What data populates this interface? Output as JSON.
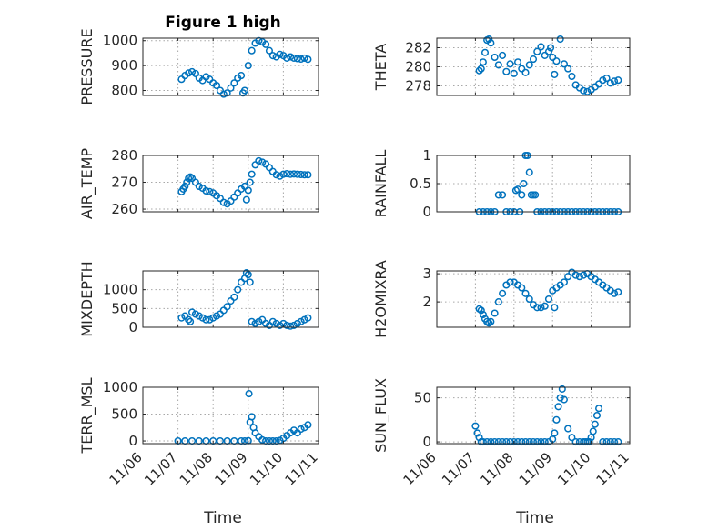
{
  "figure_title": "Figure 1 high",
  "x_axis": {
    "label": "Time",
    "tick_labels": [
      "11/06",
      "11/07",
      "11/08",
      "11/09",
      "11/10",
      "11/11"
    ],
    "range": [
      0,
      5
    ]
  },
  "colors": {
    "marker": "#0072bd",
    "axes": "#262626",
    "grid": "#a8a8a8"
  },
  "chart_data": [
    {
      "type": "scatter",
      "id": "pressure",
      "ylabel": "PRESSURE",
      "ylim": [
        780,
        1010
      ],
      "yticks": [
        800,
        900,
        1000
      ],
      "grid": true,
      "x": [
        1.1,
        1.2,
        1.3,
        1.4,
        1.5,
        1.6,
        1.7,
        1.8,
        1.9,
        2.0,
        2.1,
        2.2,
        2.3,
        2.4,
        2.5,
        2.6,
        2.7,
        2.8,
        2.85,
        2.9,
        3.0,
        3.1,
        3.2,
        3.3,
        3.4,
        3.5,
        3.6,
        3.7,
        3.8,
        3.9,
        4.0,
        4.1,
        4.2,
        4.3,
        4.4,
        4.5,
        4.6,
        4.7
      ],
      "y": [
        845,
        860,
        870,
        875,
        868,
        850,
        840,
        855,
        845,
        830,
        820,
        800,
        785,
        790,
        810,
        830,
        850,
        860,
        790,
        800,
        900,
        960,
        990,
        1000,
        995,
        985,
        960,
        940,
        935,
        945,
        940,
        930,
        935,
        930,
        928,
        926,
        930,
        925
      ]
    },
    {
      "type": "scatter",
      "id": "theta",
      "ylabel": "THETA",
      "ylim": [
        277,
        283
      ],
      "yticks": [
        278,
        280,
        282
      ],
      "grid": true,
      "x": [
        1.1,
        1.15,
        1.2,
        1.25,
        1.3,
        1.35,
        1.4,
        1.5,
        1.6,
        1.7,
        1.8,
        1.9,
        2.0,
        2.1,
        2.2,
        2.3,
        2.4,
        2.5,
        2.6,
        2.7,
        2.8,
        2.9,
        2.95,
        3.0,
        3.05,
        3.1,
        3.2,
        3.3,
        3.4,
        3.5,
        3.6,
        3.7,
        3.8,
        3.9,
        4.0,
        4.1,
        4.2,
        4.3,
        4.4,
        4.5,
        4.6,
        4.7
      ],
      "y": [
        279.6,
        279.8,
        280.5,
        281.5,
        282.8,
        282.9,
        282.5,
        281,
        280.2,
        281.2,
        279.5,
        280.3,
        279.3,
        280.5,
        279.8,
        279.4,
        280.2,
        280.8,
        281.6,
        282.1,
        281.2,
        281.6,
        282,
        281,
        279.2,
        280.6,
        282.9,
        280.3,
        279.8,
        279,
        278.1,
        277.8,
        277.5,
        277.4,
        277.6,
        277.9,
        278.2,
        278.6,
        278.8,
        278.3,
        278.5,
        278.6
      ]
    },
    {
      "type": "scatter",
      "id": "air_temp",
      "ylabel": "AIR_TEMP",
      "ylim": [
        259,
        280
      ],
      "yticks": [
        260,
        270,
        280
      ],
      "grid": true,
      "x": [
        1.1,
        1.15,
        1.2,
        1.25,
        1.3,
        1.35,
        1.4,
        1.5,
        1.6,
        1.7,
        1.8,
        1.9,
        2.0,
        2.1,
        2.2,
        2.3,
        2.4,
        2.5,
        2.6,
        2.7,
        2.8,
        2.9,
        2.95,
        3.0,
        3.05,
        3.1,
        3.2,
        3.3,
        3.4,
        3.5,
        3.6,
        3.7,
        3.8,
        3.9,
        4.0,
        4.1,
        4.2,
        4.3,
        4.4,
        4.5,
        4.6,
        4.7
      ],
      "y": [
        266.5,
        267.5,
        268.5,
        270,
        271.5,
        272,
        271.5,
        270,
        268.5,
        267.8,
        266.8,
        266.5,
        266,
        265,
        264,
        262.5,
        262,
        263,
        264.5,
        266,
        267.5,
        268.5,
        263.5,
        267,
        270,
        273,
        276.5,
        278,
        277.5,
        276.8,
        275.5,
        274,
        272.8,
        272.3,
        273,
        273.2,
        273,
        273.1,
        273,
        272.9,
        272.8,
        272.8
      ]
    },
    {
      "type": "scatter",
      "id": "rainfall",
      "ylabel": "RAINFALL",
      "ylim": [
        0,
        1
      ],
      "yticks": [
        0,
        0.5,
        1
      ],
      "ytick_labels": [
        "0",
        "0.5",
        "1"
      ],
      "grid": true,
      "x": [
        1.1,
        1.2,
        1.3,
        1.4,
        1.5,
        1.6,
        1.7,
        1.8,
        1.9,
        2.0,
        2.05,
        2.1,
        2.15,
        2.2,
        2.25,
        2.3,
        2.35,
        2.4,
        2.45,
        2.5,
        2.55,
        2.6,
        2.7,
        2.8,
        2.9,
        3.0,
        3.1,
        3.2,
        3.3,
        3.4,
        3.5,
        3.6,
        3.7,
        3.8,
        3.9,
        4.0,
        4.1,
        4.2,
        4.3,
        4.4,
        4.5,
        4.6,
        4.7
      ],
      "y": [
        0,
        0,
        0,
        0,
        0,
        0.3,
        0.3,
        0,
        0,
        0,
        0.38,
        0.4,
        0,
        0.3,
        0.5,
        1,
        1,
        0.7,
        0.3,
        0.3,
        0.3,
        0,
        0,
        0,
        0,
        0,
        0,
        0,
        0,
        0,
        0,
        0,
        0,
        0,
        0,
        0,
        0,
        0,
        0,
        0,
        0,
        0,
        0
      ]
    },
    {
      "type": "scatter",
      "id": "mixdepth",
      "ylabel": "MIXDEPTH",
      "ylim": [
        0,
        1500
      ],
      "yticks": [
        0,
        500,
        1000
      ],
      "grid": true,
      "x": [
        1.1,
        1.2,
        1.3,
        1.35,
        1.4,
        1.5,
        1.6,
        1.7,
        1.8,
        1.9,
        2.0,
        2.1,
        2.2,
        2.3,
        2.4,
        2.5,
        2.6,
        2.7,
        2.8,
        2.9,
        2.95,
        3.0,
        3.05,
        3.1,
        3.2,
        3.3,
        3.4,
        3.5,
        3.6,
        3.7,
        3.8,
        3.9,
        4.0,
        4.1,
        4.2,
        4.3,
        4.4,
        4.5,
        4.6,
        4.7
      ],
      "y": [
        250,
        300,
        200,
        150,
        400,
        350,
        300,
        250,
        200,
        200,
        250,
        300,
        350,
        450,
        550,
        700,
        800,
        1000,
        1200,
        1300,
        1450,
        1400,
        1200,
        150,
        100,
        150,
        200,
        100,
        50,
        150,
        100,
        50,
        100,
        50,
        30,
        50,
        100,
        150,
        200,
        250
      ]
    },
    {
      "type": "scatter",
      "id": "h2omixra",
      "ylabel": "H2OMIXRA",
      "ylim": [
        1.1,
        3.1
      ],
      "yticks": [
        2,
        3
      ],
      "grid": true,
      "x": [
        1.1,
        1.15,
        1.2,
        1.25,
        1.3,
        1.35,
        1.4,
        1.5,
        1.6,
        1.7,
        1.8,
        1.9,
        2.0,
        2.1,
        2.2,
        2.3,
        2.4,
        2.5,
        2.6,
        2.7,
        2.8,
        2.9,
        3.0,
        3.05,
        3.1,
        3.2,
        3.3,
        3.4,
        3.5,
        3.6,
        3.7,
        3.8,
        3.9,
        4.0,
        4.1,
        4.2,
        4.3,
        4.4,
        4.5,
        4.6,
        4.7
      ],
      "y": [
        1.75,
        1.7,
        1.55,
        1.4,
        1.3,
        1.25,
        1.3,
        1.6,
        2.0,
        2.3,
        2.6,
        2.7,
        2.7,
        2.6,
        2.5,
        2.3,
        2.1,
        1.9,
        1.8,
        1.8,
        1.85,
        2.1,
        2.4,
        1.8,
        2.5,
        2.6,
        2.7,
        2.9,
        3.05,
        2.95,
        2.9,
        2.95,
        3.0,
        2.9,
        2.8,
        2.7,
        2.6,
        2.5,
        2.4,
        2.3,
        2.35
      ]
    },
    {
      "type": "scatter",
      "id": "terr_msl",
      "ylabel": "TERR_MSL",
      "ylim": [
        -50,
        1000
      ],
      "yticks": [
        0,
        500,
        1000
      ],
      "grid": true,
      "x": [
        1.0,
        1.2,
        1.4,
        1.6,
        1.8,
        2.0,
        2.2,
        2.4,
        2.6,
        2.8,
        2.9,
        3.0,
        3.02,
        3.05,
        3.1,
        3.15,
        3.2,
        3.3,
        3.4,
        3.5,
        3.6,
        3.7,
        3.8,
        3.9,
        4.0,
        4.1,
        4.2,
        4.3,
        4.4,
        4.5,
        4.6,
        4.7
      ],
      "y": [
        0,
        0,
        0,
        0,
        0,
        0,
        0,
        0,
        0,
        0,
        0,
        5,
        880,
        350,
        450,
        250,
        150,
        80,
        20,
        0,
        0,
        0,
        0,
        10,
        50,
        100,
        150,
        200,
        150,
        220,
        250,
        300
      ]
    },
    {
      "type": "scatter",
      "id": "sun_flux",
      "ylabel": "SUN_FLUX",
      "ylim": [
        -2,
        62
      ],
      "yticks": [
        0,
        50
      ],
      "grid": true,
      "x": [
        1.0,
        1.05,
        1.1,
        1.15,
        1.2,
        1.3,
        1.4,
        1.5,
        1.6,
        1.7,
        1.8,
        1.9,
        2.0,
        2.1,
        2.2,
        2.3,
        2.4,
        2.5,
        2.6,
        2.7,
        2.8,
        2.9,
        3.0,
        3.05,
        3.1,
        3.15,
        3.2,
        3.25,
        3.3,
        3.4,
        3.5,
        3.6,
        3.7,
        3.8,
        3.85,
        3.9,
        3.95,
        4.0,
        4.05,
        4.1,
        4.15,
        4.2,
        4.3,
        4.4,
        4.5,
        4.6,
        4.7
      ],
      "y": [
        18,
        10,
        5,
        0,
        0,
        0,
        0,
        0,
        0,
        0,
        0,
        0,
        0,
        0,
        0,
        0,
        0,
        0,
        0,
        0,
        0,
        0,
        3,
        10,
        25,
        40,
        50,
        60,
        48,
        15,
        5,
        0,
        0,
        0,
        0,
        0,
        0,
        5,
        12,
        20,
        30,
        38,
        0,
        0,
        0,
        0,
        0
      ]
    }
  ]
}
